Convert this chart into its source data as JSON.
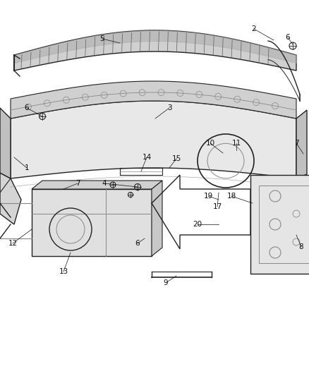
{
  "bg_color": "#ffffff",
  "lc": "#4a4a4a",
  "lc_dark": "#222222",
  "lc_light": "#888888",
  "label_fontsize": 7.5,
  "label_color": "#111111",
  "figsize": [
    4.38,
    5.33
  ],
  "dpi": 100
}
